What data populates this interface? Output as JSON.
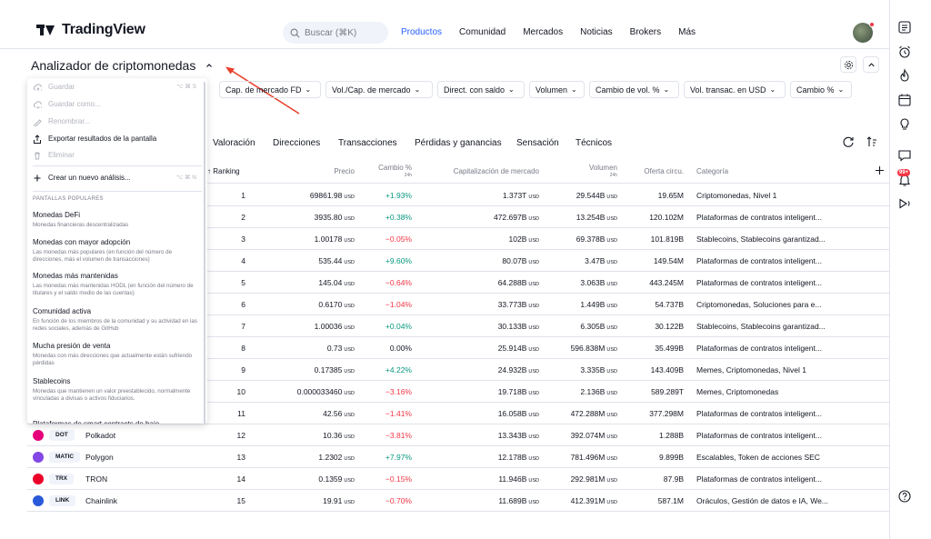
{
  "header": {
    "brand": "TradingView",
    "search_placeholder": "Buscar (⌘K)",
    "nav": [
      "Productos",
      "Comunidad",
      "Mercados",
      "Noticias",
      "Brokers",
      "Más"
    ],
    "nav_active_index": 0
  },
  "rightbar": {
    "icons": [
      "watchlist-icon",
      "alarm-clock-icon",
      "fire-icon",
      "calendar-icon",
      "lightbulb-icon",
      "chat-icon",
      "notification-icon",
      "play-icon",
      "help-icon"
    ],
    "badge": "99+"
  },
  "title": {
    "text": "Analizador de criptomonedas"
  },
  "filters": [
    "Cap. de mercado FD",
    "Vol./Cap. de mercado",
    "Direct. con saldo",
    "Volumen",
    "Cambio de vol. %",
    "Vol. transac. en USD",
    "Cambio %"
  ],
  "tabs": [
    "Valoración",
    "Direcciones",
    "Transacciones",
    "Pérdidas y ganancias",
    "Sensación",
    "Técnicos"
  ],
  "table": {
    "headers": {
      "ranking": "Ranking",
      "precio": "Precio",
      "cambio": "Cambio %",
      "cambio_sub": "24h",
      "cap": "Capitalización de mercado",
      "volumen": "Volumen",
      "volumen_sub": "24h",
      "oferta": "Oferta circu.",
      "categoria": "Categoría"
    },
    "currency": "USD",
    "rows": [
      {
        "rank": "1",
        "price": "69861.98",
        "change": "+1.93%",
        "dir": "pos",
        "cap": "1.373T",
        "vol": "29.544B",
        "supply": "19.65M",
        "cat": "Criptomonedas, Nivel 1"
      },
      {
        "rank": "2",
        "price": "3935.80",
        "change": "+0.38%",
        "dir": "pos",
        "cap": "472.697B",
        "vol": "13.254B",
        "supply": "120.102M",
        "cat": "Plataformas de contratos inteligent..."
      },
      {
        "rank": "3",
        "price": "1.00178",
        "change": "−0.05%",
        "dir": "neg",
        "cap": "102B",
        "vol": "69.378B",
        "supply": "101.819B",
        "cat": "Stablecoins, Stablecoins garantizad..."
      },
      {
        "rank": "4",
        "price": "535.44",
        "change": "+9.60%",
        "dir": "pos",
        "cap": "80.07B",
        "vol": "3.47B",
        "supply": "149.54M",
        "cat": "Plataformas de contratos inteligent..."
      },
      {
        "rank": "5",
        "price": "145.04",
        "change": "−0.64%",
        "dir": "neg",
        "cap": "64.288B",
        "vol": "3.063B",
        "supply": "443.245M",
        "cat": "Plataformas de contratos inteligent..."
      },
      {
        "rank": "6",
        "price": "0.6170",
        "change": "−1.04%",
        "dir": "neg",
        "cap": "33.773B",
        "vol": "1.449B",
        "supply": "54.737B",
        "cat": "Criptomonedas, Soluciones para e..."
      },
      {
        "rank": "7",
        "price": "1.00036",
        "change": "+0.04%",
        "dir": "pos",
        "cap": "30.133B",
        "vol": "6.305B",
        "supply": "30.122B",
        "cat": "Stablecoins, Stablecoins garantizad..."
      },
      {
        "rank": "8",
        "price": "0.73",
        "change": "0.00%",
        "dir": "neu",
        "cap": "25.914B",
        "vol": "596.838M",
        "supply": "35.499B",
        "cat": "Plataformas de contratos inteligent..."
      },
      {
        "rank": "9",
        "price": "0.17385",
        "change": "+4.22%",
        "dir": "pos",
        "cap": "24.932B",
        "vol": "3.335B",
        "supply": "143.409B",
        "cat": "Memes, Criptomonedas, Nivel 1"
      },
      {
        "rank": "10",
        "price": "0.000033460",
        "change": "−3.16%",
        "dir": "neg",
        "cap": "19.718B",
        "vol": "2.136B",
        "supply": "589.289T",
        "cat": "Memes, Criptomonedas"
      },
      {
        "rank": "11",
        "price": "42.56",
        "change": "−1.41%",
        "dir": "neg",
        "cap": "16.058B",
        "vol": "472.288M",
        "supply": "377.298M",
        "cat": "Plataformas de contratos inteligent..."
      },
      {
        "rank": "12",
        "price": "10.36",
        "change": "−3.81%",
        "dir": "neg",
        "cap": "13.343B",
        "vol": "392.074M",
        "supply": "1.288B",
        "cat": "Plataformas de contratos inteligent...",
        "ticker": "DOT",
        "name": "Polkadot",
        "color": "#e6007a"
      },
      {
        "rank": "13",
        "price": "1.2302",
        "change": "+7.97%",
        "dir": "pos",
        "cap": "12.178B",
        "vol": "781.496M",
        "supply": "9.899B",
        "cat": "Escalables, Token de acciones SEC",
        "ticker": "MATIC",
        "name": "Polygon",
        "color": "#8247e5"
      },
      {
        "rank": "14",
        "price": "0.1359",
        "change": "−0.15%",
        "dir": "neg",
        "cap": "11.946B",
        "vol": "292.981M",
        "supply": "87.9B",
        "cat": "Plataformas de contratos inteligent...",
        "ticker": "TRX",
        "name": "TRON",
        "color": "#eb0029"
      },
      {
        "rank": "15",
        "price": "19.91",
        "change": "−0.70%",
        "dir": "neg",
        "cap": "11.689B",
        "vol": "412.391M",
        "supply": "587.1M",
        "cat": "Oráculos, Gestión de datos e IA, We...",
        "ticker": "LINK",
        "name": "Chainlink",
        "color": "#2a5ada"
      }
    ]
  },
  "menu": {
    "items": [
      {
        "label": "Guardar",
        "shortcut": "⌥ ⌘ S",
        "disabled": true,
        "icon": "cloud-upload-icon"
      },
      {
        "label": "Guardar como...",
        "shortcut": "",
        "disabled": true,
        "icon": "cloud-save-icon"
      },
      {
        "label": "Renombrar...",
        "shortcut": "",
        "disabled": true,
        "icon": "pencil-icon"
      },
      {
        "label": "Exportar resultados de la pantalla",
        "shortcut": "",
        "disabled": false,
        "icon": "export-icon"
      },
      {
        "label": "Eliminar",
        "shortcut": "",
        "disabled": true,
        "icon": "trash-icon"
      }
    ],
    "create": {
      "label": "Crear un nuevo análisis...",
      "shortcut": "⌥ ⌘ N",
      "icon": "plus-icon"
    },
    "section": "PANTALLAS POPULARES",
    "popular": [
      {
        "title": "Monedas DeFi",
        "desc": "Monedas financieras descentralizadas"
      },
      {
        "title": "Monedas con mayor adopción",
        "desc": "Las monedas más populares (en función del número de direcciones, más el volumen de transacciones)"
      },
      {
        "title": "Monedas más mantenidas",
        "desc": "Las monedas más mantenidas HODL (en función del número de titulares y el saldo medio de las cuentas)"
      },
      {
        "title": "Comunidad activa",
        "desc": "En función de los miembros de la comunidad y su actividad en las redes sociales, además de GitHub"
      },
      {
        "title": "Mucha presión de venta",
        "desc": "Monedas con más direcciones que actualmente están sufriendo pérdidas"
      },
      {
        "title": "Stablecoins",
        "desc": "Monedas que mantienen un valor preestablecido, normalmente vinculadas a divisas o activos fiduciarios."
      }
    ],
    "cut_off": "Plataformas de smart contracts de bajo..."
  }
}
